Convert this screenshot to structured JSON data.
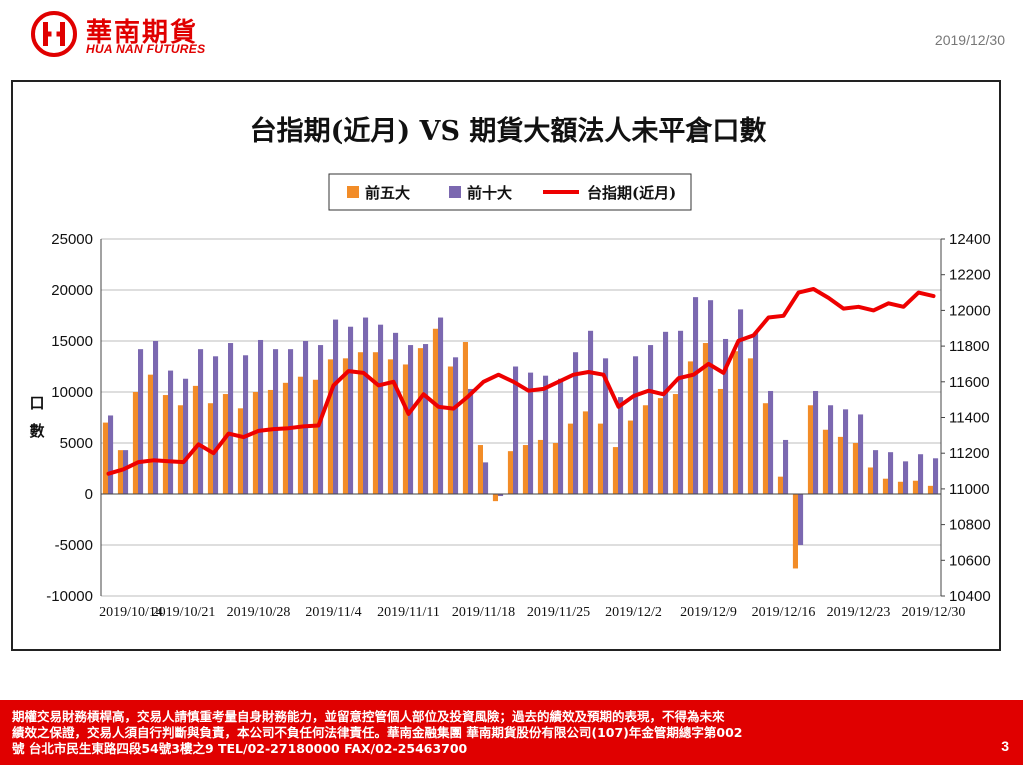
{
  "header": {
    "logo_cn": "華南期貨",
    "logo_en": "HUA NAN FUTURES",
    "date": "2019/12/30"
  },
  "footer": {
    "lines": [
      "期權交易財務槓桿高，交易人請慎重考量自身財務能力，並留意控管個人部位及投資風險；過去的績效及預期的表現，不得為未來",
      "績效之保證，交易人須自行判斷與負責，本公司不負任何法律責任。華南金融集團 華南期貨股份有限公司(107)年金管期總字第002",
      "號  台北市民生東路四段54號3樓之9 TEL/02-27180000 FAX/02-25463700"
    ],
    "page_number": "3"
  },
  "colors": {
    "brand": "#e00000",
    "top5": "#f28c28",
    "top10": "#7b68b0",
    "index": "#ee0000"
  },
  "chart_data": {
    "type": "bar",
    "title": "台指期(近月) VS 期貨大額法人未平倉口數",
    "ylabel": "口數",
    "ylim": [
      -10000,
      25000
    ],
    "y_ticks": [
      -10000,
      -5000,
      0,
      5000,
      10000,
      15000,
      20000,
      25000
    ],
    "y2lim": [
      10400,
      12400
    ],
    "y2_ticks": [
      10400,
      10600,
      10800,
      11000,
      11200,
      11400,
      11600,
      11800,
      12000,
      12200,
      12400
    ],
    "legend_placement": "top-center",
    "x_tick_labels": [
      "2019/10/14",
      "2019/10/21",
      "2019/10/28",
      "2019/11/4",
      "2019/11/11",
      "2019/11/18",
      "2019/11/25",
      "2019/12/2",
      "2019/12/9",
      "2019/12/16",
      "2019/12/23",
      "2019/12/30"
    ],
    "dates": [
      "2019/10/14",
      "2019/10/15",
      "2019/10/16",
      "2019/10/17",
      "2019/10/18",
      "2019/10/21",
      "2019/10/22",
      "2019/10/23",
      "2019/10/24",
      "2019/10/25",
      "2019/10/28",
      "2019/10/29",
      "2019/10/30",
      "2019/10/31",
      "2019/11/1",
      "2019/11/4",
      "2019/11/5",
      "2019/11/6",
      "2019/11/7",
      "2019/11/8",
      "2019/11/11",
      "2019/11/12",
      "2019/11/13",
      "2019/11/14",
      "2019/11/15",
      "2019/11/18",
      "2019/11/19",
      "2019/11/20",
      "2019/11/21",
      "2019/11/22",
      "2019/11/25",
      "2019/11/26",
      "2019/11/27",
      "2019/11/28",
      "2019/11/29",
      "2019/12/2",
      "2019/12/3",
      "2019/12/4",
      "2019/12/5",
      "2019/12/6",
      "2019/12/9",
      "2019/12/10",
      "2019/12/11",
      "2019/12/12",
      "2019/12/13",
      "2019/12/16",
      "2019/12/17",
      "2019/12/18",
      "2019/12/19",
      "2019/12/20",
      "2019/12/23",
      "2019/12/24",
      "2019/12/25",
      "2019/12/26",
      "2019/12/27",
      "2019/12/30"
    ],
    "series": [
      {
        "name": "前五大",
        "axis": "left",
        "kind": "bar",
        "values": [
          7000,
          4300,
          10000,
          11700,
          9700,
          8700,
          10600,
          8900,
          9800,
          8400,
          10000,
          10200,
          10900,
          11500,
          11200,
          13200,
          13300,
          13900,
          13900,
          13200,
          12700,
          14300,
          16200,
          12500,
          14900,
          4800,
          -700,
          4200,
          4800,
          5300,
          5000,
          6900,
          8100,
          6900,
          4600,
          7200,
          8700,
          9400,
          9800,
          13000,
          14800,
          10300,
          14000,
          13300,
          8900,
          1700,
          -7300,
          8700,
          6300,
          5600,
          5000,
          2600,
          1500,
          1200,
          1300,
          800
        ]
      },
      {
        "name": "前十大",
        "axis": "left",
        "kind": "bar",
        "values": [
          7700,
          4300,
          14200,
          15000,
          12100,
          11300,
          14200,
          13500,
          14800,
          13600,
          15100,
          14200,
          14200,
          15000,
          14600,
          17100,
          16400,
          17300,
          16600,
          15800,
          14600,
          14700,
          17300,
          13400,
          10300,
          3100,
          -200,
          12500,
          11900,
          11600,
          11300,
          13900,
          16000,
          13300,
          9500,
          13500,
          14600,
          15900,
          16000,
          19300,
          19000,
          15200,
          18100,
          15800,
          10100,
          5300,
          -5000,
          10100,
          8700,
          8300,
          7800,
          4300,
          4100,
          3200,
          3900,
          3500
        ]
      },
      {
        "name": "台指期(近月)",
        "axis": "right",
        "kind": "line",
        "values": [
          11085,
          11110,
          11150,
          11160,
          11155,
          11150,
          11250,
          11200,
          11310,
          11290,
          11325,
          11335,
          11340,
          11350,
          11355,
          11580,
          11660,
          11650,
          11580,
          11600,
          11420,
          11530,
          11460,
          11450,
          11520,
          11600,
          11640,
          11600,
          11550,
          11560,
          11600,
          11640,
          11655,
          11640,
          11460,
          11520,
          11550,
          11530,
          11620,
          11640,
          11700,
          11650,
          11830,
          11860,
          11960,
          11970,
          12100,
          12120,
          12070,
          12010,
          12020,
          12000,
          12040,
          12020,
          12100,
          12080
        ]
      }
    ]
  }
}
